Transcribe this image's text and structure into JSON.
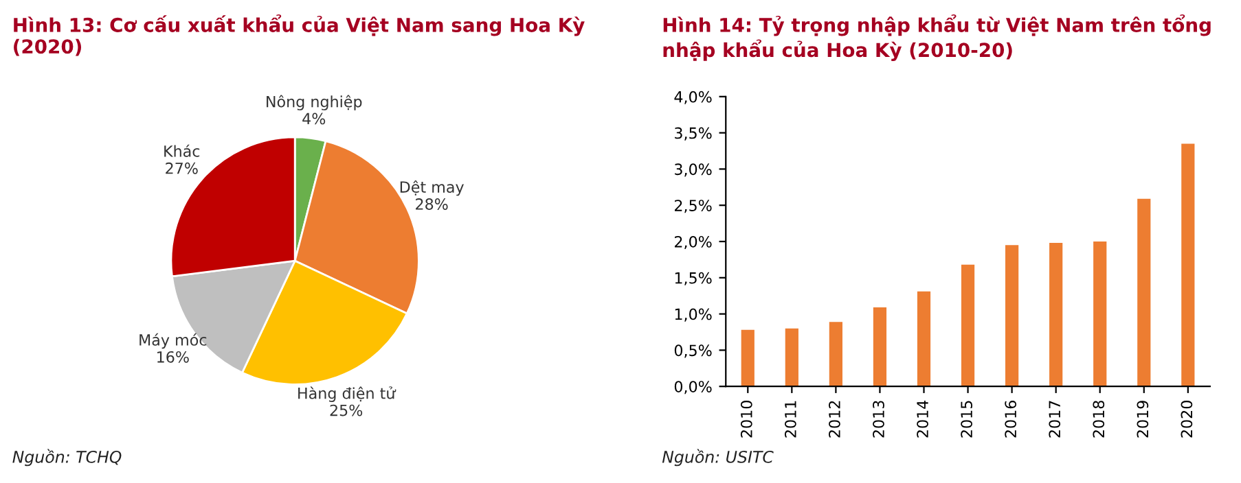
{
  "chart_data": [
    {
      "type": "pie",
      "title": "Hình 13: Cơ cấu xuất khẩu của Việt Nam sang Hoa Kỳ (2020)",
      "categories": [
        "Nông nghiệp",
        "Dệt may",
        "Hàng điện tử",
        "Máy móc",
        "Khác"
      ],
      "values": [
        4,
        28,
        25,
        16,
        27
      ],
      "value_labels": [
        "4%",
        "28%",
        "25%",
        "16%",
        "27%"
      ],
      "colors": [
        "#6ab04c",
        "#ed7d31",
        "#ffc000",
        "#bfbfbf",
        "#c00000"
      ],
      "annotations": [
        "Nguồn: TCHQ"
      ]
    },
    {
      "type": "bar",
      "title": "Hình 14: Tỷ trọng nhập khẩu từ Việt Nam trên tổng nhập khẩu của Hoa Kỳ (2010-20)",
      "categories": [
        "2010",
        "2011",
        "2012",
        "2013",
        "2014",
        "2015",
        "2016",
        "2017",
        "2018",
        "2019",
        "2020"
      ],
      "series": [
        {
          "color": "#ed7d31",
          "values": [
            0.78,
            0.8,
            0.89,
            1.09,
            1.31,
            1.68,
            1.95,
            1.98,
            2.0,
            2.59,
            3.35
          ]
        }
      ],
      "ylim": [
        0,
        4
      ],
      "yticks": [
        {
          "value": 0,
          "label": "0,0%"
        },
        {
          "value": 0.5,
          "label": "0,5%"
        },
        {
          "value": 1,
          "label": "1,0%"
        },
        {
          "value": 1.5,
          "label": "1,5%"
        },
        {
          "value": 2,
          "label": "2,0%"
        },
        {
          "value": 2.5,
          "label": "2,5%"
        },
        {
          "value": 3,
          "label": "3,0%"
        },
        {
          "value": 3.5,
          "label": "3,5%"
        },
        {
          "value": 4,
          "label": "4,0%"
        }
      ],
      "grid": false,
      "legend": false,
      "annotations": [
        "Nguồn: USITC"
      ]
    }
  ]
}
